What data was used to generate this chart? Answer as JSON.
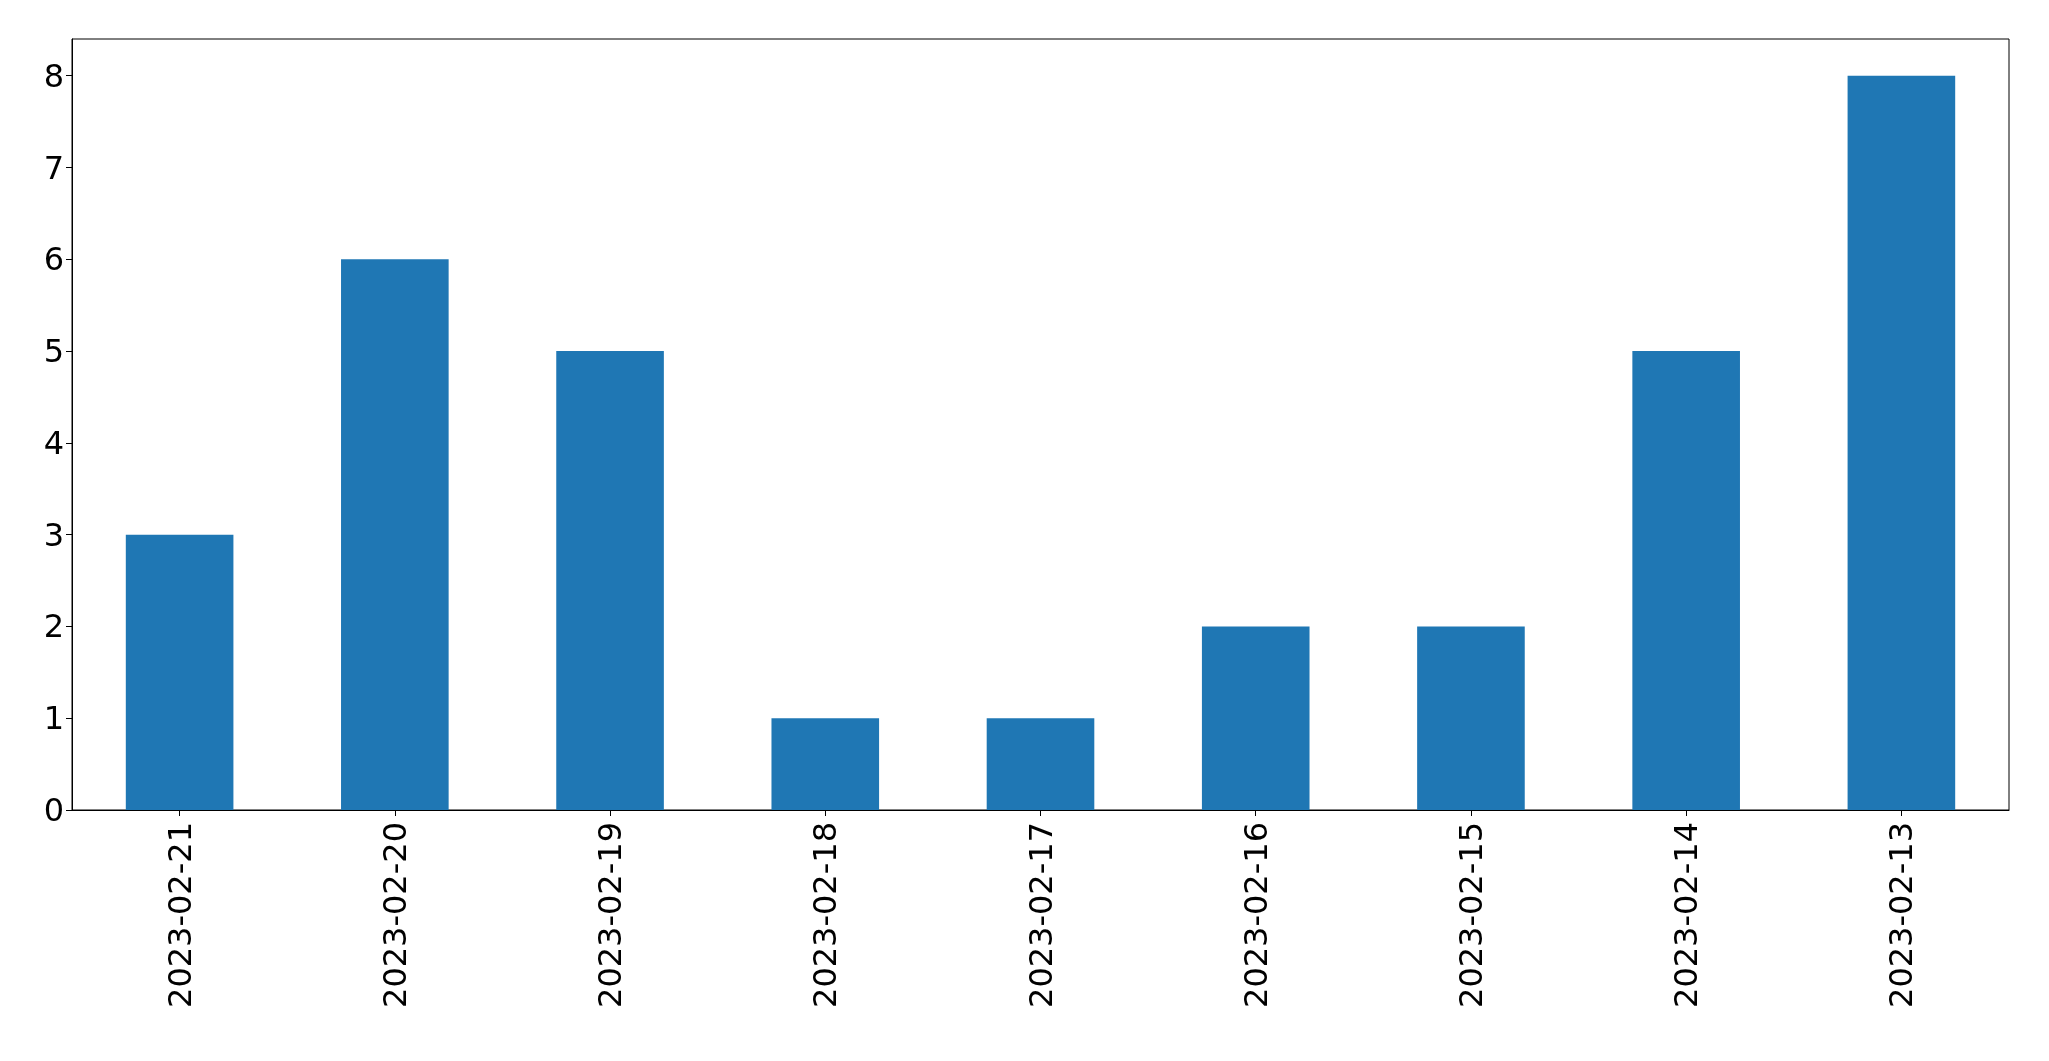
{
  "chart_data": {
    "type": "bar",
    "categories": [
      "2023-02-21",
      "2023-02-20",
      "2023-02-19",
      "2023-02-18",
      "2023-02-17",
      "2023-02-16",
      "2023-02-15",
      "2023-02-14",
      "2023-02-13"
    ],
    "values": [
      3,
      6,
      5,
      1,
      1,
      2,
      2,
      5,
      8
    ],
    "color": "#1f77b4",
    "ylim": [
      0,
      8.4
    ],
    "yticks": [
      0,
      1,
      2,
      3,
      4,
      5,
      6,
      7,
      8
    ],
    "grid": false
  }
}
